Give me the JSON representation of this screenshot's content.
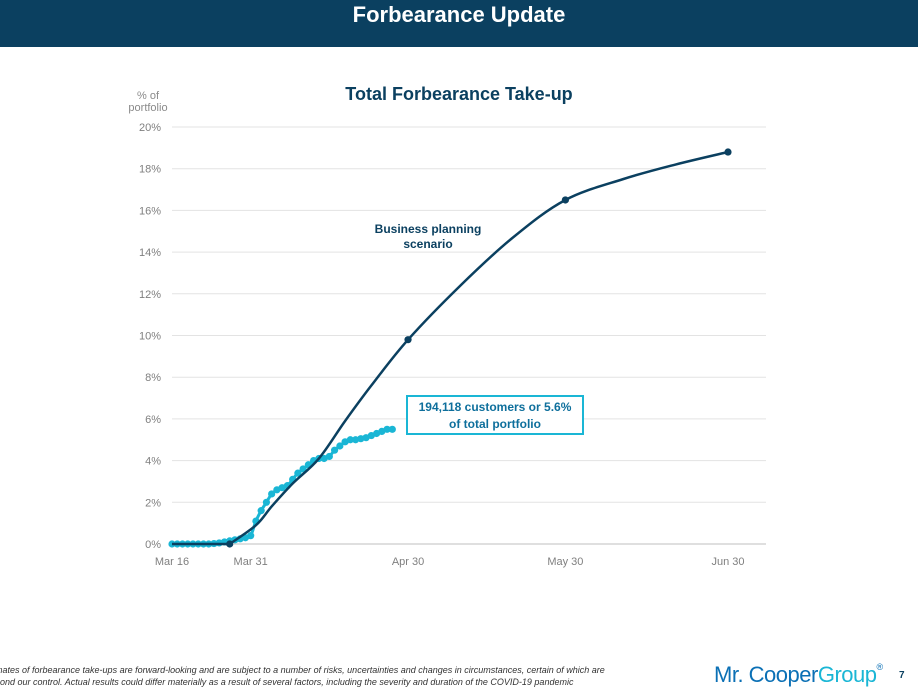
{
  "header": {
    "title": "Forbearance Update"
  },
  "chart_data": {
    "type": "line",
    "title": "Total Forbearance Take-up",
    "ylabel": "% of portfolio",
    "y_ticks": [
      "0%",
      "2%",
      "4%",
      "6%",
      "8%",
      "10%",
      "12%",
      "14%",
      "16%",
      "18%",
      "20%"
    ],
    "ylim": [
      0,
      20
    ],
    "x_ticks": [
      "Mar 16",
      "Mar 31",
      "Apr 30",
      "May 30",
      "Jun 30"
    ],
    "x_tick_values": [
      "2020-03-16",
      "2020-03-31",
      "2020-04-30",
      "2020-05-30",
      "2020-06-30"
    ],
    "grid": true,
    "series": [
      {
        "name": "Business planning scenario",
        "color": "#0b4060",
        "x": [
          "2020-03-16",
          "2020-03-27",
          "2020-04-01",
          "2020-04-04",
          "2020-04-08",
          "2020-04-13",
          "2020-04-18",
          "2020-04-23",
          "2020-04-30",
          "2020-05-10",
          "2020-05-20",
          "2020-05-30",
          "2020-06-10",
          "2020-06-20",
          "2020-06-30"
        ],
        "y": [
          0,
          0,
          0.9,
          1.8,
          2.9,
          4.1,
          5.9,
          7.6,
          9.8,
          12.4,
          14.7,
          16.5,
          17.5,
          18.2,
          18.8
        ],
        "markers": [
          "2020-03-27",
          "2020-04-30",
          "2020-05-30",
          "2020-06-30"
        ]
      },
      {
        "name": "",
        "color": "#1ab6d5",
        "x": [
          "2020-03-16",
          "2020-03-17",
          "2020-03-18",
          "2020-03-19",
          "2020-03-20",
          "2020-03-21",
          "2020-03-22",
          "2020-03-23",
          "2020-03-24",
          "2020-03-25",
          "2020-03-26",
          "2020-03-27",
          "2020-03-28",
          "2020-03-29",
          "2020-03-30",
          "2020-03-31",
          "2020-04-01",
          "2020-04-02",
          "2020-04-03",
          "2020-04-04",
          "2020-04-05",
          "2020-04-06",
          "2020-04-07",
          "2020-04-08",
          "2020-04-09",
          "2020-04-10",
          "2020-04-11",
          "2020-04-12",
          "2020-04-13",
          "2020-04-14",
          "2020-04-15",
          "2020-04-16",
          "2020-04-17",
          "2020-04-18",
          "2020-04-19",
          "2020-04-20",
          "2020-04-21",
          "2020-04-22",
          "2020-04-23",
          "2020-04-24",
          "2020-04-25",
          "2020-04-26",
          "2020-04-27"
        ],
        "y": [
          0,
          0,
          0,
          0,
          0,
          0,
          0,
          0,
          0.02,
          0.05,
          0.1,
          0.15,
          0.2,
          0.25,
          0.3,
          0.4,
          1.1,
          1.6,
          2.0,
          2.4,
          2.6,
          2.7,
          2.8,
          3.1,
          3.4,
          3.6,
          3.8,
          4.0,
          4.1,
          4.1,
          4.2,
          4.5,
          4.7,
          4.9,
          5.0,
          5.0,
          5.05,
          5.1,
          5.2,
          5.3,
          5.4,
          5.5,
          5.5
        ]
      }
    ],
    "annotations": {
      "scenario_label": "Business planning scenario",
      "actual_callout": "194,118 customers or 5.6% of total portfolio"
    }
  },
  "annotations": {
    "scenario_line1": "Business planning",
    "scenario_line2": "scenario",
    "callout_line1": "194,118 customers or 5.6%",
    "callout_line2": "of total portfolio"
  },
  "y_unit": {
    "line1": "% of",
    "line2": "portfolio"
  },
  "footnote": {
    "line1": "mates of forbearance take-ups are forward-looking and are subject to a number of risks, uncertainties and changes in circumstances, certain of which are",
    "line2": "ond our control.  Actual results could differ materially as a result of several factors, including the severity and duration of the COVID-19 pandemic"
  },
  "logo": {
    "mr": "Mr. ",
    "cooper": "Cooper",
    "group": "Group",
    "reg": "®"
  },
  "page_number": "7"
}
